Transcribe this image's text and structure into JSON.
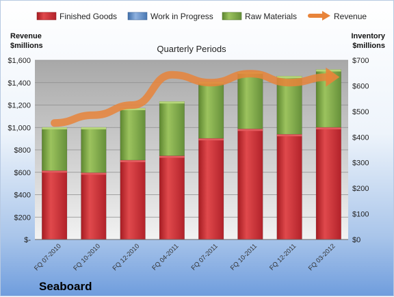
{
  "chart_data": {
    "type": "bar",
    "title": "Quarterly Periods",
    "brand": "Seaboard",
    "legend_position": "top",
    "grid": true,
    "categories": [
      "FQ 07-2010",
      "FQ 10-2010",
      "FQ 12-2010",
      "FQ 04-2011",
      "FQ 07-2011",
      "FQ 10-2011",
      "FQ 12-2011",
      "FQ 03-2012"
    ],
    "left_axis": {
      "label_line1": "Revenue",
      "label_line2": "$millions",
      "ylim": [
        0,
        1600
      ],
      "ticks": [
        0,
        200,
        400,
        600,
        800,
        1000,
        1200,
        1400,
        1600
      ],
      "tick_labels": [
        "$-",
        "$200",
        "$400",
        "$600",
        "$800",
        "$1,000",
        "$1,200",
        "$1,400",
        "$1,600"
      ]
    },
    "right_axis": {
      "label_line1": "Inventory",
      "label_line2": "$millions",
      "ylim": [
        0,
        700
      ],
      "ticks": [
        0,
        100,
        200,
        300,
        400,
        500,
        600,
        700
      ],
      "tick_labels": [
        "$0",
        "$100",
        "$200",
        "$300",
        "$400",
        "$500",
        "$600",
        "$700"
      ]
    },
    "series": [
      {
        "name": "Finished Goods",
        "axis": "right",
        "kind": "stacked-bar",
        "color": "#c0262c",
        "values": [
          269,
          261,
          310,
          327,
          395,
          432,
          411,
          438
        ]
      },
      {
        "name": "Work in Progress",
        "axis": "right",
        "kind": "stacked-bar",
        "color": "#4f81bd",
        "values": [
          0,
          0,
          0,
          0,
          0,
          0,
          0,
          0
        ]
      },
      {
        "name": "Raw Materials",
        "axis": "right",
        "kind": "stacked-bar",
        "color": "#76a03c",
        "values": [
          169,
          177,
          203,
          212,
          221,
          223,
          227,
          226
        ]
      },
      {
        "name": "Revenue",
        "axis": "left",
        "kind": "line",
        "color": "#e8843a",
        "values": [
          1040,
          1110,
          1200,
          1470,
          1400,
          1480,
          1400,
          1450
        ]
      }
    ]
  }
}
